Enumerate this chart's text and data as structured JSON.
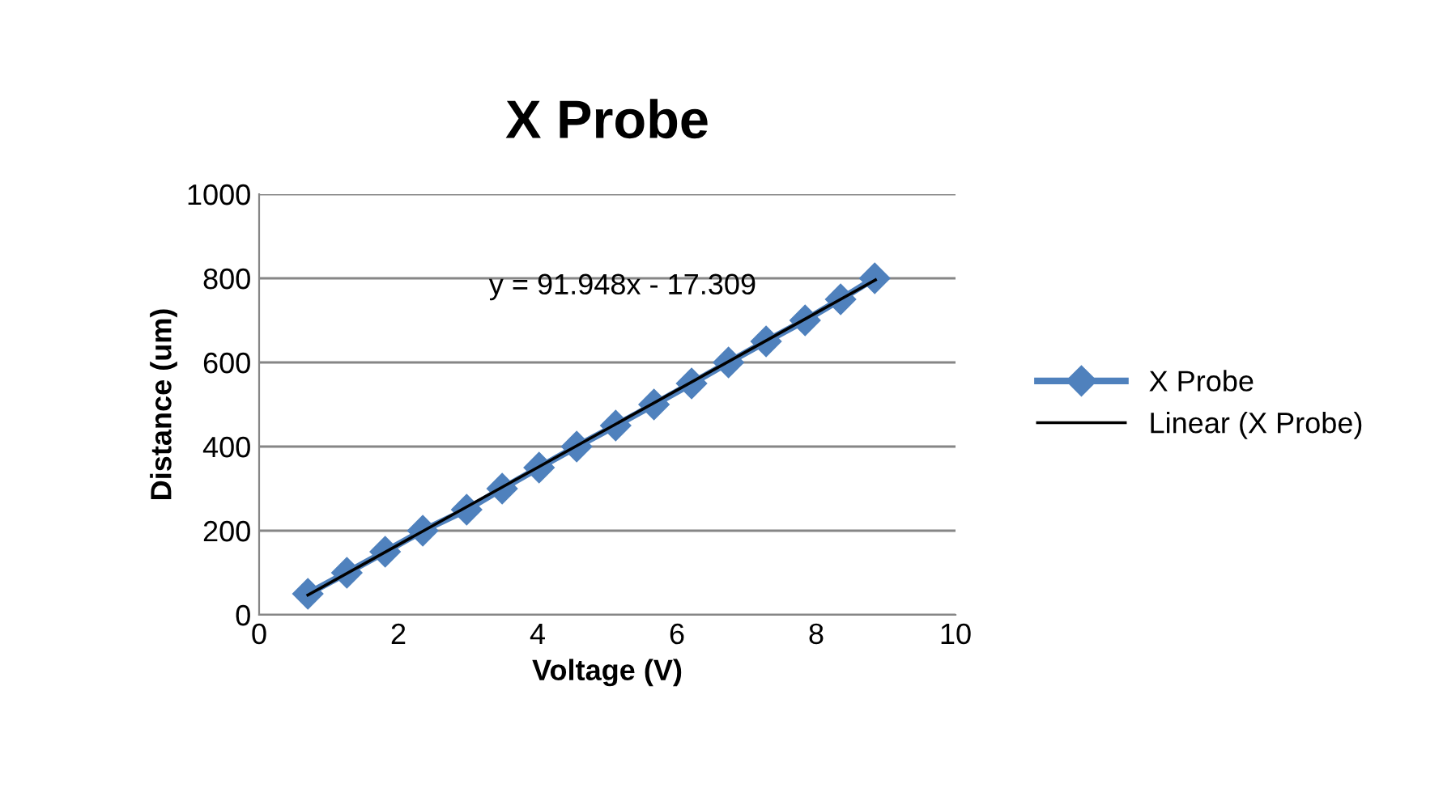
{
  "chart_data": {
    "type": "line",
    "title": "X Probe",
    "xlabel": "Voltage (V)",
    "ylabel": "Distance (um)",
    "xlim": [
      0,
      10
    ],
    "xticks": [
      0,
      2,
      4,
      6,
      8,
      10
    ],
    "ylim": [
      0,
      1000
    ],
    "yticks": [
      0,
      200,
      400,
      600,
      800,
      1000
    ],
    "grid": "y",
    "legend": "right",
    "annotations": [
      "y = 91.948x - 17.309"
    ],
    "series": [
      {
        "name": "X Probe",
        "color": "#4f81bd",
        "marker": "diamond",
        "x": [
          0.7,
          1.26,
          1.81,
          2.35,
          2.98,
          3.49,
          4.02,
          4.56,
          5.12,
          5.67,
          6.21,
          6.74,
          7.28,
          7.84,
          8.35,
          8.84
        ],
        "values": [
          50,
          100,
          150,
          200,
          250,
          300,
          350,
          400,
          450,
          500,
          550,
          600,
          650,
          700,
          750,
          800
        ]
      },
      {
        "name": "Linear (X Probe)",
        "color": "#000000",
        "marker": "none",
        "x": [
          0.7,
          8.85
        ],
        "values": [
          47,
          796
        ]
      }
    ]
  }
}
